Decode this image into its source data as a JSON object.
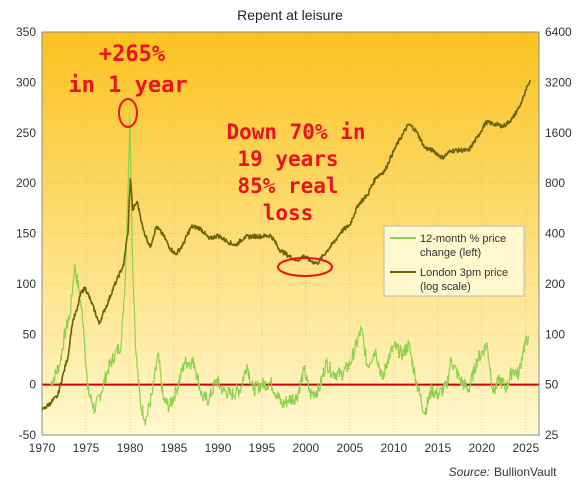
{
  "colors": {
    "bg_top": "#fbc21e",
    "bg_bottom": "#fff8cf",
    "pct_line": "#8fd14f",
    "price_line": "#6b6205",
    "zero_line": "#cc0000",
    "annotation": "#e8141b"
  },
  "chart_data": {
    "type": "line",
    "title": "Repent at leisure",
    "x": {
      "ticks": [
        1970,
        1975,
        1980,
        1985,
        1990,
        1995,
        2000,
        2005,
        2010,
        2015,
        2020,
        2025
      ],
      "range": [
        1970,
        2026.5
      ]
    },
    "y_left": {
      "ticks": [
        -50,
        0,
        50,
        100,
        150,
        200,
        250,
        300,
        350
      ],
      "range": [
        -50,
        350
      ]
    },
    "y_right": {
      "scale": "log2",
      "ticks": [
        25,
        50,
        100,
        200,
        400,
        800,
        1600,
        3200,
        6400
      ],
      "range": [
        25,
        6400
      ]
    },
    "grid": true,
    "legend_position": "right-middle",
    "series": [
      {
        "name": "12-month % price change (left)",
        "axis": "left",
        "points": [
          [
            1971,
            0
          ],
          [
            1972,
            20
          ],
          [
            1972.7,
            55
          ],
          [
            1973.2,
            70
          ],
          [
            1973.7,
            118
          ],
          [
            1974.2,
            95
          ],
          [
            1974.7,
            60
          ],
          [
            1975.2,
            -5
          ],
          [
            1976,
            -25
          ],
          [
            1976.7,
            -8
          ],
          [
            1977.5,
            15
          ],
          [
            1978.3,
            30
          ],
          [
            1979,
            40
          ],
          [
            1979.5,
            110
          ],
          [
            1980,
            265
          ],
          [
            1980.3,
            120
          ],
          [
            1980.7,
            30
          ],
          [
            1981.2,
            -20
          ],
          [
            1981.8,
            -35
          ],
          [
            1982.5,
            -10
          ],
          [
            1983.2,
            30
          ],
          [
            1983.8,
            -15
          ],
          [
            1984.5,
            -22
          ],
          [
            1985.3,
            -5
          ],
          [
            1986.2,
            22
          ],
          [
            1987.3,
            22
          ],
          [
            1988.2,
            -12
          ],
          [
            1989,
            -15
          ],
          [
            1989.8,
            5
          ],
          [
            1990.5,
            -5
          ],
          [
            1991.5,
            -10
          ],
          [
            1992.5,
            -5
          ],
          [
            1993.3,
            20
          ],
          [
            1994,
            -5
          ],
          [
            1995,
            0
          ],
          [
            1996,
            2
          ],
          [
            1997.3,
            -20
          ],
          [
            1998,
            -15
          ],
          [
            1999,
            -12
          ],
          [
            1999.8,
            15
          ],
          [
            2000.5,
            -10
          ],
          [
            2001.5,
            -5
          ],
          [
            2002.3,
            22
          ],
          [
            2003,
            12
          ],
          [
            2004,
            10
          ],
          [
            2005,
            20
          ],
          [
            2006.3,
            55
          ],
          [
            2007,
            18
          ],
          [
            2007.9,
            35
          ],
          [
            2008.7,
            5
          ],
          [
            2009.3,
            25
          ],
          [
            2010,
            38
          ],
          [
            2011,
            30
          ],
          [
            2011.7,
            40
          ],
          [
            2012.5,
            5
          ],
          [
            2013.5,
            -28
          ],
          [
            2014.3,
            -5
          ],
          [
            2015,
            -10
          ],
          [
            2016,
            -2
          ],
          [
            2016.5,
            25
          ],
          [
            2017.5,
            5
          ],
          [
            2018.5,
            -5
          ],
          [
            2019.5,
            25
          ],
          [
            2020.6,
            40
          ],
          [
            2021.3,
            -8
          ],
          [
            2022,
            5
          ],
          [
            2022.8,
            -3
          ],
          [
            2023.5,
            15
          ],
          [
            2024.2,
            10
          ],
          [
            2024.7,
            35
          ],
          [
            2025.3,
            48
          ]
        ]
      },
      {
        "name": "London 3pm price (log scale)",
        "axis": "right",
        "points": [
          [
            1970,
            35
          ],
          [
            1971,
            39
          ],
          [
            1971.8,
            43
          ],
          [
            1972.5,
            60
          ],
          [
            1973,
            75
          ],
          [
            1973.5,
            120
          ],
          [
            1974,
            140
          ],
          [
            1974.4,
            175
          ],
          [
            1974.9,
            190
          ],
          [
            1975.5,
            160
          ],
          [
            1976.5,
            115
          ],
          [
            1977.5,
            155
          ],
          [
            1978.5,
            210
          ],
          [
            1979.3,
            260
          ],
          [
            1979.8,
            420
          ],
          [
            1980.05,
            850
          ],
          [
            1980.3,
            550
          ],
          [
            1980.8,
            620
          ],
          [
            1981.5,
            420
          ],
          [
            1982.3,
            330
          ],
          [
            1983,
            440
          ],
          [
            1983.8,
            390
          ],
          [
            1984.5,
            330
          ],
          [
            1985.2,
            300
          ],
          [
            1986,
            340
          ],
          [
            1987,
            440
          ],
          [
            1988,
            430
          ],
          [
            1989,
            370
          ],
          [
            1990,
            390
          ],
          [
            1991,
            360
          ],
          [
            1992,
            340
          ],
          [
            1993,
            380
          ],
          [
            1994,
            385
          ],
          [
            1995,
            385
          ],
          [
            1996,
            390
          ],
          [
            1997,
            320
          ],
          [
            1998,
            295
          ],
          [
            1999,
            275
          ],
          [
            1999.8,
            295
          ],
          [
            2000.5,
            275
          ],
          [
            2001.3,
            265
          ],
          [
            2002.3,
            310
          ],
          [
            2003.3,
            360
          ],
          [
            2004,
            410
          ],
          [
            2005,
            450
          ],
          [
            2006,
            600
          ],
          [
            2007,
            680
          ],
          [
            2008,
            870
          ],
          [
            2009,
            950
          ],
          [
            2010,
            1250
          ],
          [
            2011,
            1560
          ],
          [
            2011.7,
            1800
          ],
          [
            2012.5,
            1650
          ],
          [
            2013.5,
            1300
          ],
          [
            2014.5,
            1250
          ],
          [
            2015.5,
            1130
          ],
          [
            2016.5,
            1250
          ],
          [
            2017.5,
            1260
          ],
          [
            2018.5,
            1250
          ],
          [
            2019.5,
            1500
          ],
          [
            2020.5,
            1850
          ],
          [
            2021.5,
            1800
          ],
          [
            2022.5,
            1750
          ],
          [
            2023.5,
            1950
          ],
          [
            2024.3,
            2300
          ],
          [
            2024.8,
            2650
          ],
          [
            2025.3,
            3100
          ],
          [
            2025.5,
            3300
          ]
        ]
      }
    ],
    "annotations": [
      {
        "lines": [
          "+265%",
          "in 1 year"
        ]
      },
      {
        "lines": [
          "Down 70% in",
          "19 years",
          "85% real",
          "loss"
        ]
      }
    ],
    "zero_line": true
  },
  "legend": {
    "item1_l1": "12-month % price",
    "item1_l2": "change (left)",
    "item2_l1": "London 3pm price",
    "item2_l2": "(log scale)"
  },
  "source": {
    "label": "Source:",
    "name": "BullionVault"
  }
}
